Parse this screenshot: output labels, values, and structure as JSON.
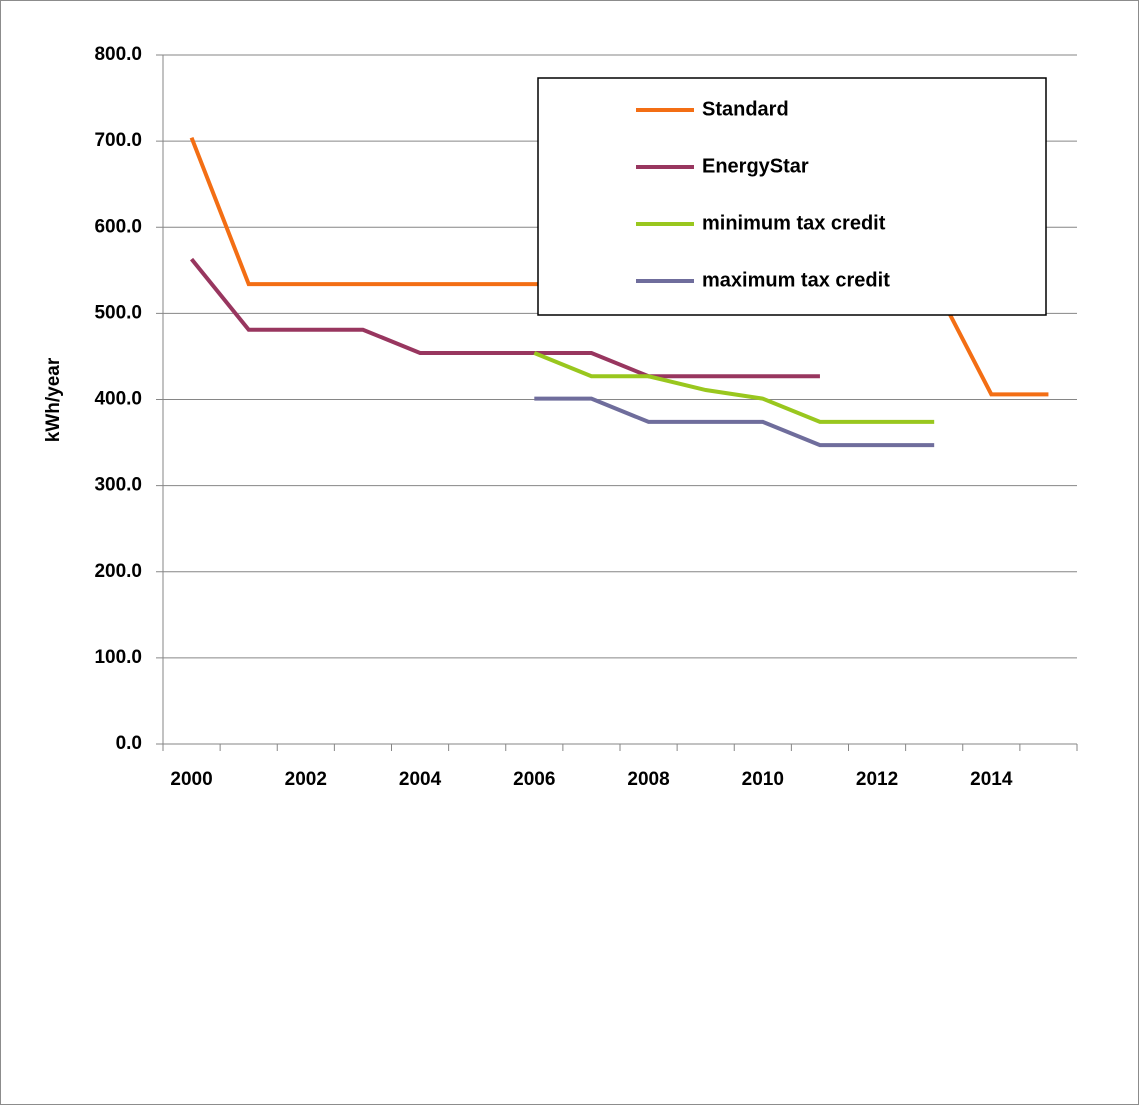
{
  "chart_data": {
    "type": "line",
    "title": "",
    "xlabel": "",
    "ylabel": "kWh/year",
    "x": [
      2000,
      2001,
      2002,
      2003,
      2004,
      2005,
      2006,
      2007,
      2008,
      2009,
      2010,
      2011,
      2012,
      2013,
      2014,
      2015
    ],
    "x_tick_labels": [
      "2000",
      "2002",
      "2004",
      "2006",
      "2008",
      "2010",
      "2012",
      "2014"
    ],
    "y_tick_labels": [
      "0.0",
      "100.0",
      "200.0",
      "300.0",
      "400.0",
      "500.0",
      "600.0",
      "700.0",
      "800.0"
    ],
    "ylim": [
      0,
      800
    ],
    "grid": "horizontal",
    "legend_position": "top-right",
    "series": [
      {
        "name": "Standard",
        "color": "#f36e14",
        "points": [
          [
            2000,
            704
          ],
          [
            2001,
            534
          ],
          [
            2002,
            534
          ],
          [
            2003,
            534
          ],
          [
            2004,
            534
          ],
          [
            2005,
            534
          ],
          [
            2006,
            534
          ],
          [
            2007,
            534
          ],
          [
            2008,
            534
          ],
          [
            2009,
            534
          ],
          [
            2010,
            534
          ],
          [
            2011,
            534
          ],
          [
            2012,
            534
          ],
          [
            2013,
            534
          ],
          [
            2014,
            406
          ],
          [
            2015,
            406
          ]
        ]
      },
      {
        "name": "EnergyStar",
        "color": "#98365f",
        "points": [
          [
            2000,
            563
          ],
          [
            2001,
            481
          ],
          [
            2002,
            481
          ],
          [
            2003,
            481
          ],
          [
            2004,
            454
          ],
          [
            2005,
            454
          ],
          [
            2006,
            454
          ],
          [
            2007,
            454
          ],
          [
            2008,
            427
          ],
          [
            2009,
            427
          ],
          [
            2010,
            427
          ],
          [
            2011,
            427
          ]
        ]
      },
      {
        "name": "minimum tax credit",
        "color": "#99c71e",
        "points": [
          [
            2006,
            454
          ],
          [
            2007,
            427
          ],
          [
            2008,
            427
          ],
          [
            2009,
            411
          ],
          [
            2010,
            401
          ],
          [
            2011,
            374
          ],
          [
            2012,
            374
          ],
          [
            2013,
            374
          ]
        ]
      },
      {
        "name": "maximum tax credit",
        "color": "#6f6d9c",
        "points": [
          [
            2006,
            401
          ],
          [
            2007,
            401
          ],
          [
            2008,
            374
          ],
          [
            2009,
            374
          ],
          [
            2010,
            374
          ],
          [
            2011,
            347
          ],
          [
            2012,
            347
          ],
          [
            2013,
            347
          ]
        ]
      }
    ]
  }
}
